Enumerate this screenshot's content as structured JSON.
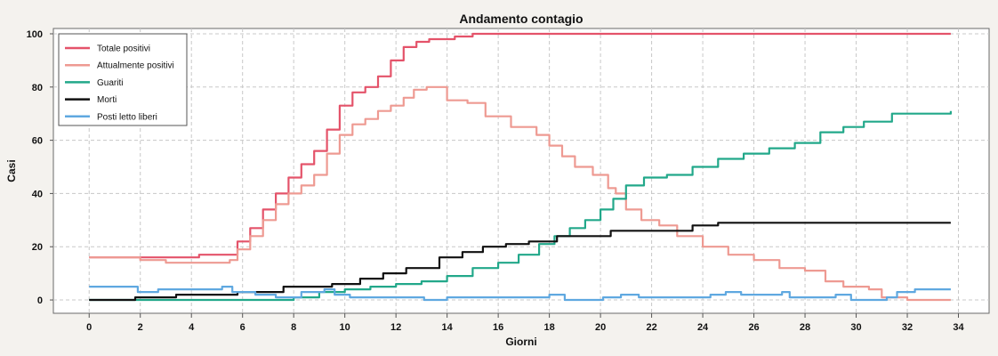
{
  "chart_data": {
    "type": "line",
    "title": "Andamento contagio",
    "xlabel": "Giorni",
    "ylabel": "Casi",
    "xlim": [
      -1.4,
      35.2
    ],
    "ylim": [
      -5,
      102
    ],
    "x_ticks": [
      0,
      2,
      4,
      6,
      8,
      10,
      12,
      14,
      16,
      18,
      20,
      22,
      24,
      26,
      28,
      30,
      32,
      34
    ],
    "y_ticks": [
      0,
      20,
      40,
      60,
      80,
      100
    ],
    "grid": true,
    "legend_position": "top-left",
    "series": [
      {
        "name": "Totale positivi",
        "color": "#e4536a",
        "x": [
          0,
          4.3,
          5.4,
          5.8,
          6.3,
          6.8,
          7.3,
          7.8,
          8.3,
          8.8,
          9.3,
          9.8,
          10.3,
          10.8,
          11.3,
          11.8,
          12.3,
          12.8,
          13.3,
          13.8,
          14.3,
          14.8,
          15.0,
          33.7
        ],
        "values": [
          16,
          17,
          17,
          22,
          27,
          34,
          40,
          46,
          51,
          56,
          64,
          73,
          78,
          80,
          84,
          90,
          95,
          97,
          98,
          98,
          99,
          99,
          100,
          100
        ]
      },
      {
        "name": "Attualmente positivi",
        "color": "#ee9a92",
        "x": [
          0,
          2,
          3,
          5.5,
          5.8,
          6.3,
          6.8,
          7.3,
          7.8,
          8.3,
          8.8,
          9.3,
          9.8,
          10.3,
          10.8,
          11.3,
          11.8,
          12.3,
          12.7,
          13.2,
          13.7,
          14,
          14.8,
          15.5,
          16.5,
          17.5,
          18,
          18.5,
          19,
          19.7,
          20.3,
          20.6,
          21,
          21.6,
          22.3,
          23,
          24,
          25,
          26,
          27,
          28,
          28.8,
          29.5,
          30.5,
          31,
          32,
          33.7
        ],
        "values": [
          16,
          15,
          14,
          15,
          19,
          24,
          30,
          36,
          40,
          43,
          47,
          55,
          62,
          66,
          68,
          71,
          73,
          76,
          79,
          80,
          80,
          75,
          74,
          69,
          65,
          62,
          58,
          54,
          50,
          47,
          42,
          40,
          34,
          30,
          28,
          24,
          20,
          17,
          15,
          12,
          11,
          7,
          5,
          4,
          1,
          0,
          0
        ]
      },
      {
        "name": "Guariti",
        "color": "#22a88a",
        "x": [
          0,
          6.8,
          8,
          9,
          10,
          11,
          12,
          13,
          14,
          15,
          16,
          16.8,
          17.6,
          18.2,
          18.8,
          19.4,
          20,
          20.5,
          21,
          21.7,
          22.6,
          23.6,
          24.6,
          25.6,
          26.6,
          27.6,
          28.6,
          29.5,
          30.3,
          31.4,
          32.3,
          33.7
        ],
        "values": [
          0,
          0,
          1,
          3,
          4,
          5,
          6,
          7,
          9,
          12,
          14,
          17,
          21,
          24,
          27,
          30,
          34,
          38,
          43,
          46,
          47,
          50,
          53,
          55,
          57,
          59,
          63,
          65,
          67,
          70,
          70,
          71
        ]
      },
      {
        "name": "Morti",
        "color": "#111111",
        "x": [
          0,
          1.8,
          2.4,
          3.4,
          5.8,
          7.6,
          9.5,
          10.6,
          11.5,
          12.4,
          13.7,
          14.6,
          15.4,
          16.3,
          17.2,
          18.3,
          19.2,
          20.4,
          21.5,
          23.6,
          24.6,
          33.7
        ],
        "values": [
          0,
          1,
          1,
          2,
          3,
          5,
          6,
          8,
          10,
          12,
          16,
          18,
          20,
          21,
          22,
          24,
          24,
          26,
          26,
          28,
          29,
          29
        ]
      },
      {
        "name": "Posti letto liberi",
        "color": "#5fa8e0",
        "x": [
          0,
          1.3,
          1.9,
          2.7,
          5.2,
          5.6,
          6.5,
          7.3,
          8.3,
          9.2,
          9.6,
          10.2,
          12.5,
          13.1,
          14.0,
          17.5,
          18.0,
          18.6,
          20.1,
          20.8,
          21.5,
          22.1,
          23.2,
          23.9,
          24.3,
          24.9,
          25.5,
          26.9,
          27.1,
          27.4,
          28.6,
          29.2,
          29.8,
          31.2,
          31.6,
          32.3,
          33.7
        ],
        "values": [
          5,
          5,
          3,
          4,
          5,
          3,
          2,
          1,
          3,
          4,
          2,
          1,
          1,
          0,
          1,
          1,
          2,
          0,
          1,
          2,
          1,
          1,
          1,
          1,
          2,
          3,
          2,
          2,
          3,
          1,
          1,
          2,
          0,
          1,
          3,
          4,
          4
        ]
      }
    ]
  }
}
